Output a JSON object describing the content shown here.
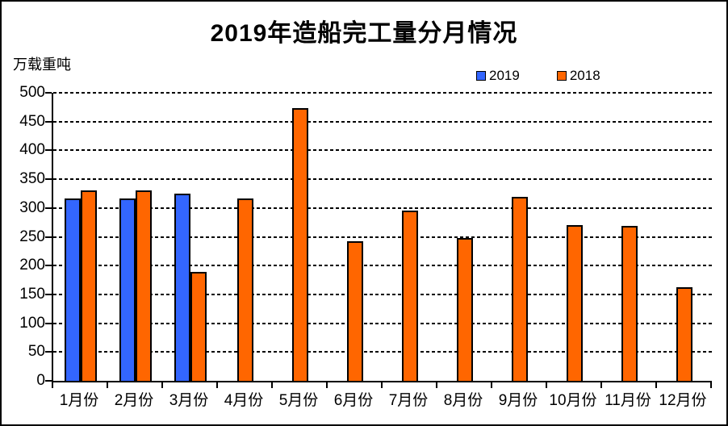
{
  "chart_data": {
    "type": "bar",
    "title": "2019年造船完工量分月情况",
    "ylabel": "万载重吨",
    "xlabel": "",
    "categories": [
      "1月份",
      "2月份",
      "3月份",
      "4月份",
      "5月份",
      "6月份",
      "7月份",
      "8月份",
      "9月份",
      "10月份",
      "11月份",
      "12月份"
    ],
    "series": [
      {
        "name": "2019",
        "color": "#3366FF",
        "values": [
          317,
          317,
          325,
          null,
          null,
          null,
          null,
          null,
          null,
          null,
          null,
          null
        ]
      },
      {
        "name": "2018",
        "color": "#FF6600",
        "values": [
          331,
          331,
          189,
          317,
          473,
          242,
          295,
          248,
          320,
          271,
          269,
          163
        ]
      }
    ],
    "ylim": [
      0,
      500
    ],
    "ytick_step": 50,
    "grid": "horizontal-dashed",
    "legend_position": "top-right",
    "axis_color": "#000000",
    "background_color": "#FFFFFF"
  }
}
